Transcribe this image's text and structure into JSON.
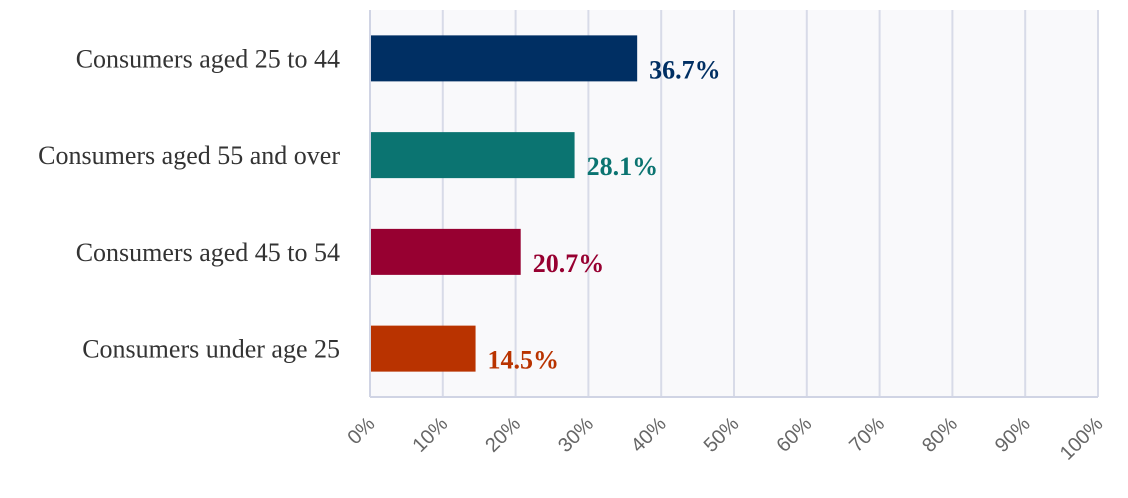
{
  "chart_data": {
    "type": "bar",
    "orientation": "horizontal",
    "categories": [
      "Consumers aged 25 to 44",
      "Consumers aged 55 and over",
      "Consumers aged 45 to 54",
      "Consumers under age 25"
    ],
    "values": [
      36.7,
      28.1,
      20.7,
      14.5
    ],
    "value_labels": [
      "36.7%",
      "28.1%",
      "20.7%",
      "14.5%"
    ],
    "colors": [
      "#002f63",
      "#0b7471",
      "#970031",
      "#b93300"
    ],
    "xlim": [
      0,
      100
    ],
    "xticks": [
      0,
      10,
      20,
      30,
      40,
      50,
      60,
      70,
      80,
      90,
      100
    ],
    "xtick_labels": [
      "0%",
      "10%",
      "20%",
      "30%",
      "40%",
      "50%",
      "60%",
      "70%",
      "80%",
      "90%",
      "100%"
    ],
    "title": "",
    "xlabel": "",
    "ylabel": "",
    "grid": "vertical",
    "legend": "none"
  }
}
